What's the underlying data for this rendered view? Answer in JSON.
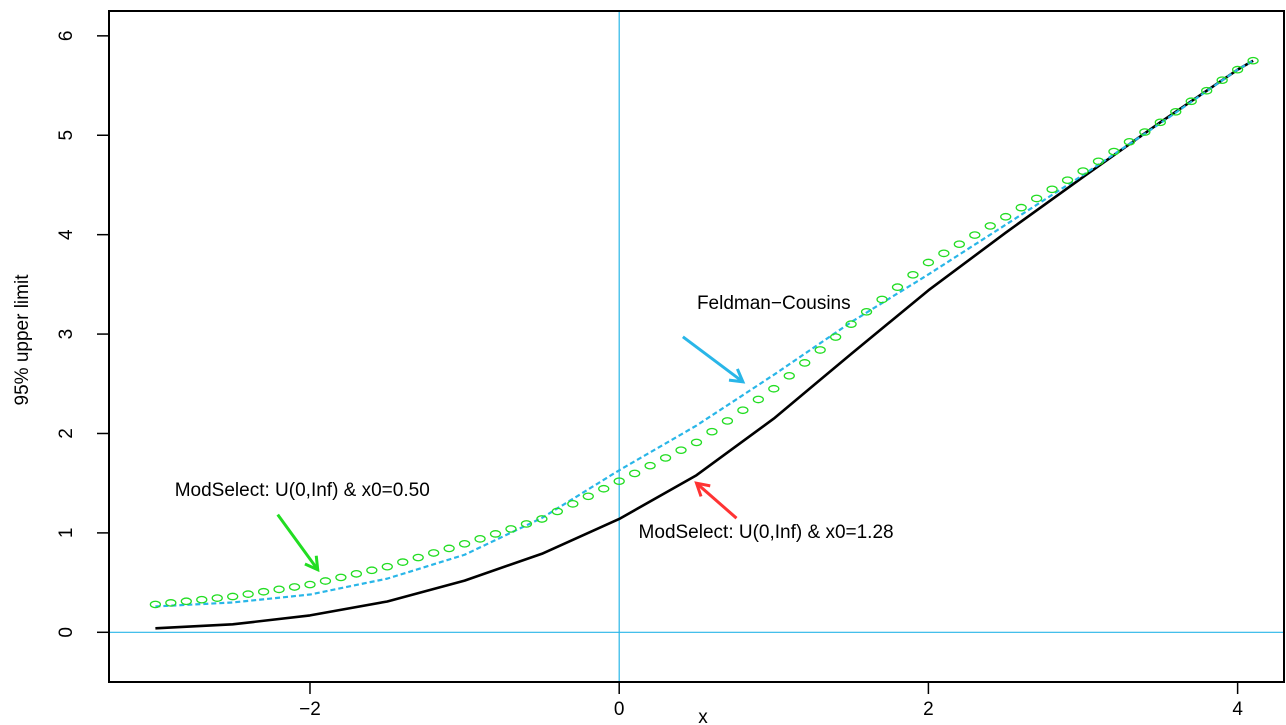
{
  "chart_data": {
    "type": "line",
    "title": "",
    "xlabel": "x",
    "ylabel": "95% upper limit",
    "xlim": [
      -3.3,
      4.3
    ],
    "ylim": [
      -0.5,
      6.25
    ],
    "xticks": [
      -2,
      0,
      2,
      4
    ],
    "yticks": [
      0,
      1,
      2,
      3,
      4,
      5,
      6
    ],
    "xtick_labels": [
      "−2",
      "0",
      "2",
      "4"
    ],
    "ytick_labels": [
      "0",
      "1",
      "2",
      "3",
      "4",
      "5",
      "6"
    ],
    "reference_lines": {
      "vertical_x": 0,
      "horizontal_y": 0,
      "color": "#29b6e8"
    },
    "grid": false,
    "series": [
      {
        "style": "solid",
        "color": "#000000",
        "x": [
          -3.0,
          -2.5,
          -2.0,
          -1.5,
          -1.0,
          -0.5,
          0.0,
          0.5,
          1.0,
          1.5,
          2.0,
          2.5,
          3.0,
          3.5,
          4.0,
          4.1
        ],
        "y": [
          0.04,
          0.08,
          0.17,
          0.31,
          0.52,
          0.79,
          1.14,
          1.58,
          2.15,
          2.8,
          3.44,
          4.02,
          4.58,
          5.13,
          5.66,
          5.75
        ]
      },
      {
        "style": "dashed",
        "color": "#29b6e8",
        "x": [
          -3.0,
          -2.5,
          -2.0,
          -1.5,
          -1.0,
          -0.5,
          0.0,
          0.5,
          1.0,
          1.5,
          2.0,
          2.5,
          3.0,
          3.5,
          4.0,
          4.1
        ],
        "y": [
          0.26,
          0.3,
          0.38,
          0.54,
          0.78,
          1.15,
          1.63,
          2.08,
          2.59,
          3.12,
          3.6,
          4.1,
          4.6,
          5.12,
          5.66,
          5.75
        ]
      },
      {
        "style": "points",
        "color": "#22dd22",
        "x": [
          -3.0,
          -2.5,
          -2.0,
          -1.5,
          -1.0,
          -0.5,
          0.0,
          0.5,
          1.0,
          1.5,
          2.0,
          2.5,
          3.0,
          3.5,
          4.0,
          4.1
        ],
        "y": [
          0.28,
          0.36,
          0.48,
          0.66,
          0.89,
          1.14,
          1.52,
          1.91,
          2.45,
          3.1,
          3.72,
          4.18,
          4.64,
          5.13,
          5.66,
          5.75
        ]
      }
    ],
    "annotations": [
      {
        "text": "Feldman−Cousins",
        "anchor_x": 1.0,
        "anchor_y": 3.25,
        "arrow_to": [
          0.8,
          2.52
        ],
        "color": "#29b6e8"
      },
      {
        "text": "ModSelect: U(0,Inf) & x0=0.50",
        "anchor_x": -2.05,
        "anchor_y": 1.37,
        "arrow_to": [
          -1.95,
          0.63
        ],
        "color": "#22dd22"
      },
      {
        "text": "ModSelect: U(0,Inf) & x0=1.28",
        "anchor_x": 0.95,
        "anchor_y": 0.95,
        "arrow_to": [
          0.5,
          1.5
        ],
        "color": "#ff3333"
      }
    ]
  }
}
